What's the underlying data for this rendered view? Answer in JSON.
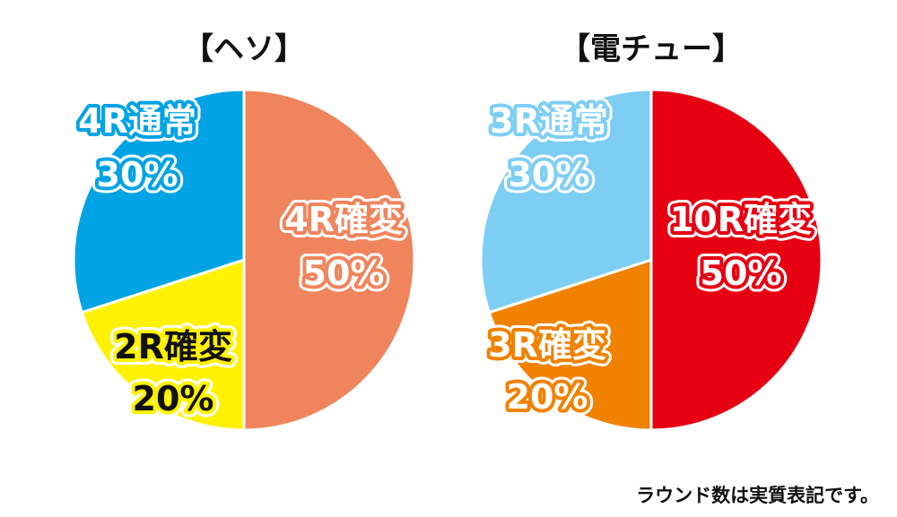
{
  "chart_data": [
    {
      "type": "pie",
      "title": "【ヘソ】",
      "slices": [
        {
          "label": "4R確変",
          "value": 50,
          "display": "50%",
          "color": "#F0845C",
          "text_color": "#FFFFFF",
          "outline_color": "#F0845C"
        },
        {
          "label": "2R確変",
          "value": 20,
          "display": "20%",
          "color": "#FFF200",
          "text_color": "#111111",
          "outline_color": "#FFF200"
        },
        {
          "label": "4R通常",
          "value": 30,
          "display": "30%",
          "color": "#00A3E4",
          "text_color": "#FFFFFF",
          "outline_color": "#00A3E4"
        }
      ]
    },
    {
      "type": "pie",
      "title": "【電チュー】",
      "slices": [
        {
          "label": "10R確変",
          "value": 50,
          "display": "50%",
          "color": "#E60012",
          "text_color": "#FFFFFF",
          "outline_color": "#E60012"
        },
        {
          "label": "3R確変",
          "value": 20,
          "display": "20%",
          "color": "#F08200",
          "text_color": "#FFFFFF",
          "outline_color": "#F08200"
        },
        {
          "label": "3R通常",
          "value": 30,
          "display": "30%",
          "color": "#7ECEF4",
          "text_color": "#FFFFFF",
          "outline_color": "#7ECEF4"
        }
      ]
    }
  ],
  "footnote": "ラウンド数は実質表記です。"
}
